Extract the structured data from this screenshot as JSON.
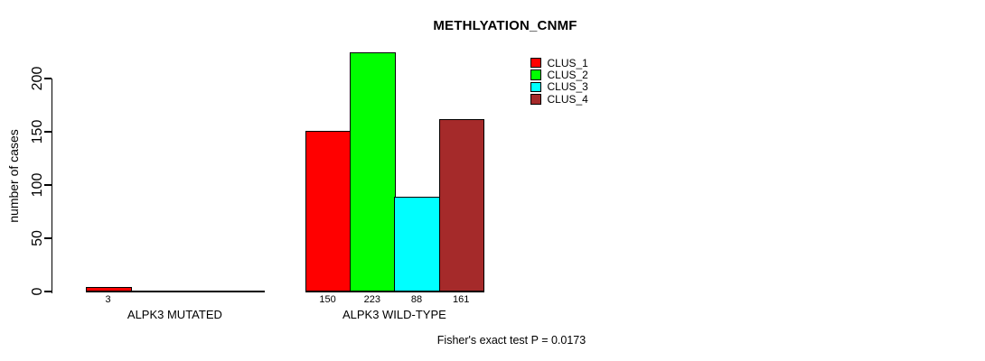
{
  "chart_data": {
    "type": "bar",
    "title": "METHLYATION_CNMF",
    "ylabel": "number of cases",
    "ylim": [
      0,
      223
    ],
    "yticks": [
      0,
      50,
      100,
      150,
      200
    ],
    "grid": false,
    "legend_position": "top-right",
    "categories": [
      "ALPK3 MUTATED",
      "ALPK3 WILD-TYPE"
    ],
    "series": [
      {
        "name": "CLUS_1",
        "color": "#ff0000",
        "values": [
          3,
          150
        ]
      },
      {
        "name": "CLUS_2",
        "color": "#00ff00",
        "values": [
          0,
          223
        ]
      },
      {
        "name": "CLUS_3",
        "color": "#00ffff",
        "values": [
          0,
          88
        ]
      },
      {
        "name": "CLUS_4",
        "color": "#a52a2a",
        "values": [
          0,
          161
        ]
      }
    ],
    "bar_value_label_rule": "value shown under each bar when value > 0",
    "annotation": "Fisher's exact test P = 0.0173"
  }
}
